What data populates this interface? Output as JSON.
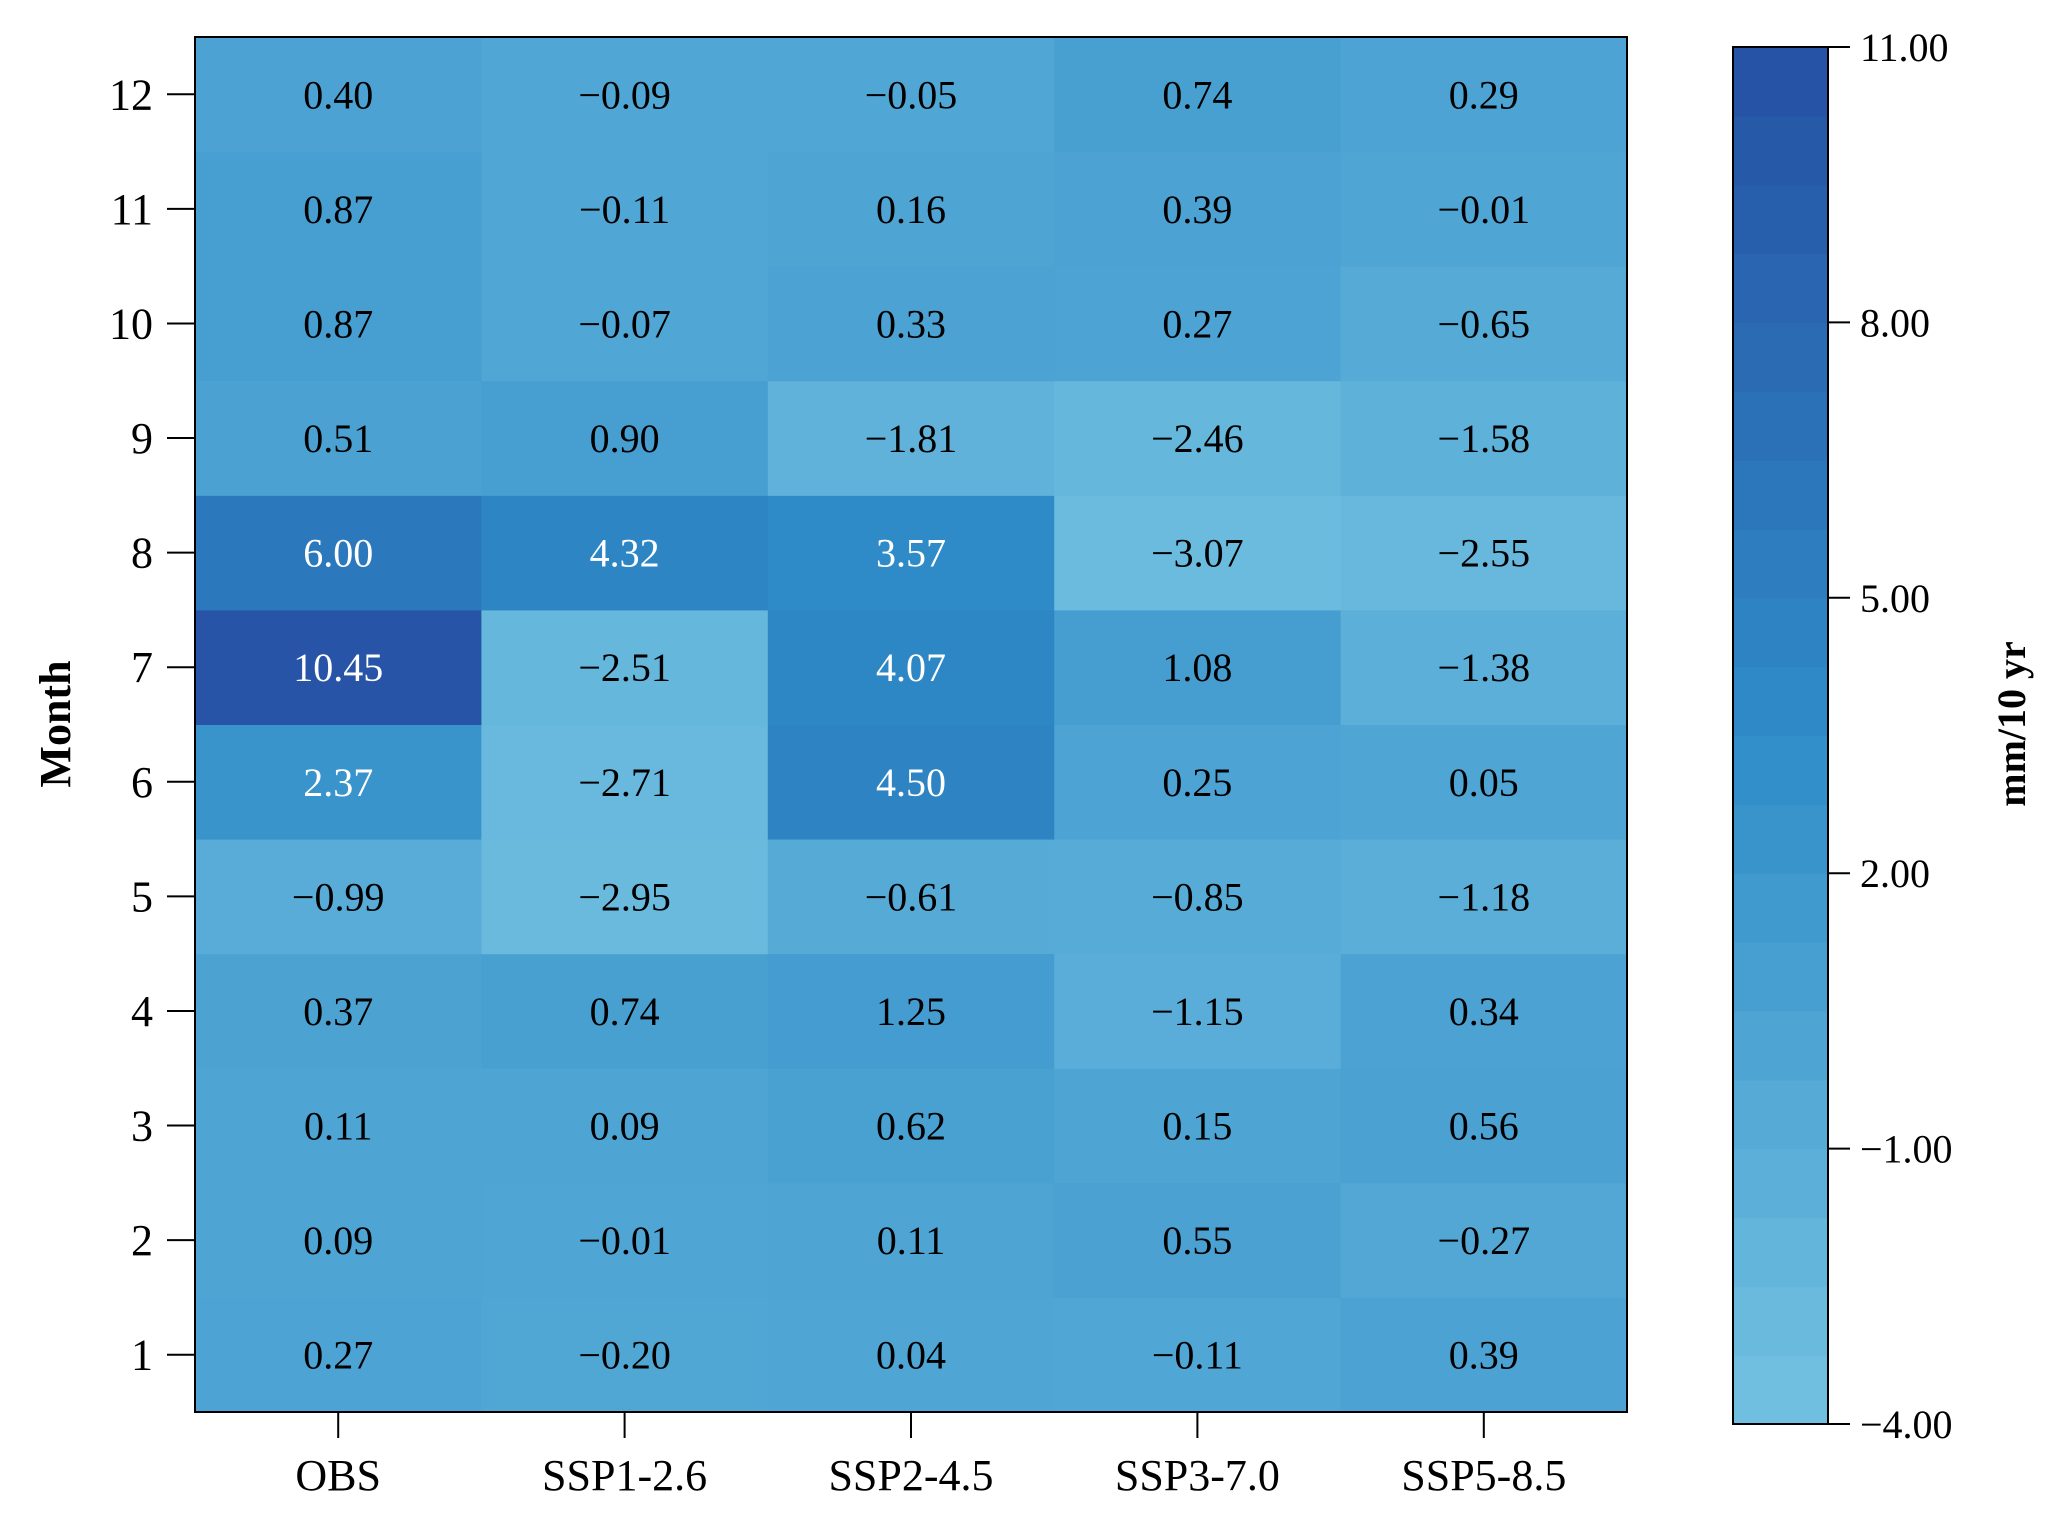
{
  "chart_data": {
    "type": "heatmap",
    "title": "",
    "xlabel": "",
    "ylabel": "Month",
    "x_categories": [
      "OBS",
      "SSP1-2.6",
      "SSP2-4.5",
      "SSP3-7.0",
      "SSP5-8.5"
    ],
    "y_categories": [
      "1",
      "2",
      "3",
      "4",
      "5",
      "6",
      "7",
      "8",
      "9",
      "10",
      "11",
      "12"
    ],
    "values": [
      [
        0.27,
        -0.2,
        0.04,
        -0.11,
        0.39
      ],
      [
        0.09,
        -0.01,
        0.11,
        0.55,
        -0.27
      ],
      [
        0.11,
        0.09,
        0.62,
        0.15,
        0.56
      ],
      [
        0.37,
        0.74,
        1.25,
        -1.15,
        0.34
      ],
      [
        -0.99,
        -2.95,
        -0.61,
        -0.85,
        -1.18
      ],
      [
        2.37,
        -2.71,
        4.5,
        0.25,
        0.05
      ],
      [
        10.45,
        -2.51,
        4.07,
        1.08,
        -1.38
      ],
      [
        6.0,
        4.32,
        3.57,
        -3.07,
        -2.55
      ],
      [
        0.51,
        0.9,
        -1.81,
        -2.46,
        -1.58
      ],
      [
        0.87,
        -0.07,
        0.33,
        0.27,
        -0.65
      ],
      [
        0.87,
        -0.11,
        0.16,
        0.39,
        -0.01
      ],
      [
        0.4,
        -0.09,
        -0.05,
        0.74,
        0.29
      ]
    ],
    "cell_labels": [
      [
        "0.27",
        "−0.20",
        "0.04",
        "−0.11",
        "0.39"
      ],
      [
        "0.09",
        "−0.01",
        "0.11",
        "0.55",
        "−0.27"
      ],
      [
        "0.11",
        "0.09",
        "0.62",
        "0.15",
        "0.56"
      ],
      [
        "0.37",
        "0.74",
        "1.25",
        "−1.15",
        "0.34"
      ],
      [
        "−0.99",
        "−2.95",
        "−0.61",
        "−0.85",
        "−1.18"
      ],
      [
        "2.37",
        "−2.71",
        "4.50",
        "0.25",
        "0.05"
      ],
      [
        "10.45",
        "−2.51",
        "4.07",
        "1.08",
        "−1.38"
      ],
      [
        "6.00",
        "4.32",
        "3.57",
        "−3.07",
        "−2.55"
      ],
      [
        "0.51",
        "0.90",
        "−1.81",
        "−2.46",
        "−1.58"
      ],
      [
        "0.87",
        "−0.07",
        "0.33",
        "0.27",
        "−0.65"
      ],
      [
        "0.87",
        "−0.11",
        "0.16",
        "0.39",
        "−0.01"
      ],
      [
        "0.40",
        "−0.09",
        "−0.05",
        "0.74",
        "0.29"
      ]
    ],
    "colorbar": {
      "label": "mm/10 yr",
      "range": [
        -4,
        11
      ],
      "ticks": [
        -4,
        -1,
        2,
        5,
        8,
        11
      ],
      "tick_labels": [
        "−4.00",
        "−1.00",
        "2.00",
        "5.00",
        "8.00",
        "11.00"
      ],
      "color_low": "#74c2e1",
      "color_mid": "#2f8cc8",
      "color_high": "#2650a4"
    },
    "text_color_dark": "#000000",
    "text_color_light": "#ffffff",
    "light_text_threshold": 2
  }
}
